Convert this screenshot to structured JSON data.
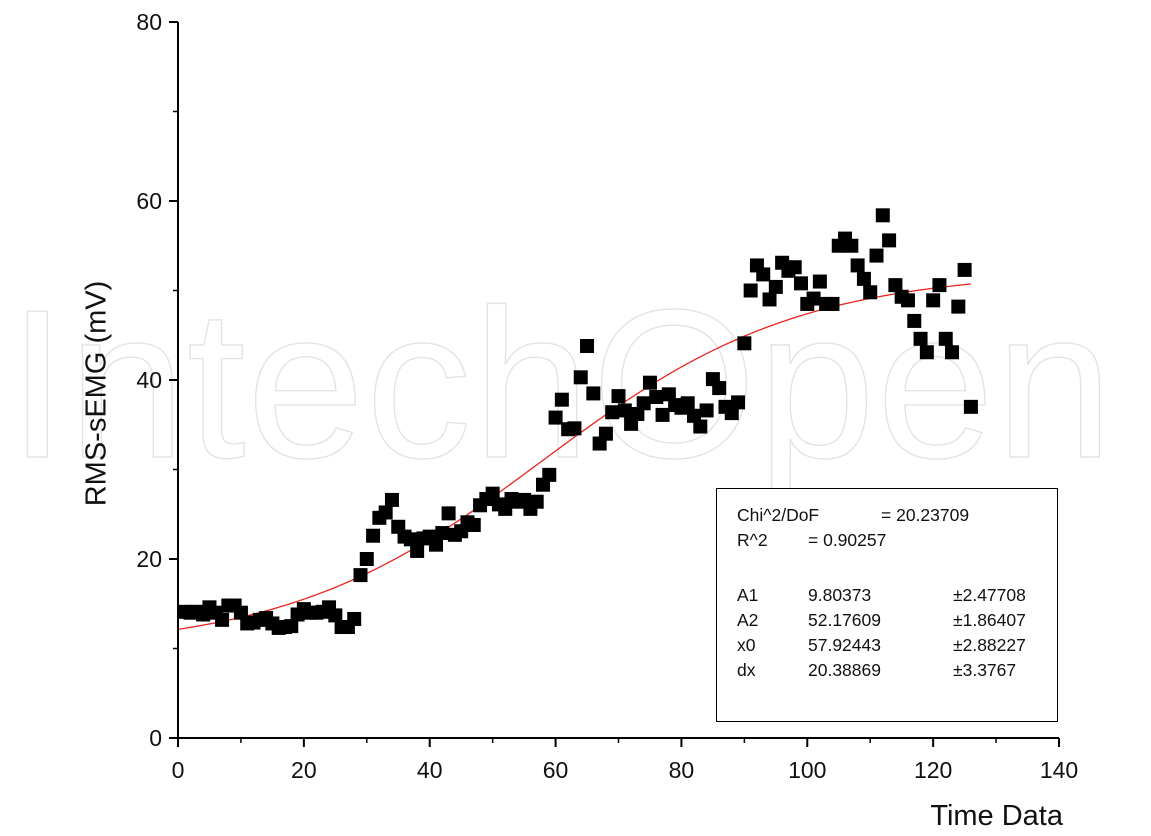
{
  "watermark": "IntechOpen",
  "chart_data": {
    "type": "scatter",
    "title": "",
    "xlabel": "Time Data",
    "ylabel": "RMS-sEMG (mV)",
    "xlim": [
      0,
      140
    ],
    "ylim": [
      0,
      80
    ],
    "xticks": [
      0,
      20,
      40,
      60,
      80,
      100,
      120,
      140
    ],
    "yticks": [
      0,
      20,
      40,
      60,
      80
    ],
    "grid": false,
    "series": [
      {
        "marker": "square",
        "color": "#000000",
        "points": [
          [
            1,
            14.1
          ],
          [
            2,
            14.0
          ],
          [
            3,
            14.1
          ],
          [
            4,
            13.8
          ],
          [
            5,
            14.6
          ],
          [
            6,
            14.0
          ],
          [
            7,
            13.2
          ],
          [
            8,
            14.8
          ],
          [
            9,
            14.8
          ],
          [
            10,
            14.0
          ],
          [
            11,
            12.8
          ],
          [
            12,
            12.9
          ],
          [
            13,
            13.2
          ],
          [
            14,
            13.4
          ],
          [
            15,
            12.8
          ],
          [
            16,
            12.3
          ],
          [
            17,
            12.4
          ],
          [
            18,
            12.5
          ],
          [
            19,
            13.8
          ],
          [
            20,
            14.4
          ],
          [
            21,
            14.0
          ],
          [
            22,
            14.0
          ],
          [
            23,
            14.1
          ],
          [
            24,
            14.6
          ],
          [
            25,
            13.7
          ],
          [
            26,
            12.4
          ],
          [
            27,
            12.4
          ],
          [
            28,
            13.3
          ],
          [
            29,
            18.2
          ],
          [
            30,
            20.0
          ],
          [
            31,
            22.6
          ],
          [
            32,
            24.6
          ],
          [
            33,
            25.2
          ],
          [
            34,
            26.6
          ],
          [
            35,
            23.6
          ],
          [
            36,
            22.5
          ],
          [
            37,
            22.2
          ],
          [
            38,
            20.9
          ],
          [
            39,
            22.3
          ],
          [
            40,
            22.5
          ],
          [
            41,
            21.6
          ],
          [
            42,
            22.9
          ],
          [
            43,
            25.1
          ],
          [
            44,
            22.7
          ],
          [
            45,
            23.1
          ],
          [
            46,
            24.1
          ],
          [
            47,
            23.8
          ],
          [
            48,
            26.0
          ],
          [
            49,
            26.7
          ],
          [
            50,
            27.3
          ],
          [
            51,
            26.1
          ],
          [
            52,
            25.6
          ],
          [
            53,
            26.7
          ],
          [
            54,
            26.4
          ],
          [
            55,
            26.6
          ],
          [
            56,
            25.6
          ],
          [
            57,
            26.4
          ],
          [
            58,
            28.3
          ],
          [
            59,
            29.4
          ],
          [
            60,
            35.8
          ],
          [
            61,
            37.8
          ],
          [
            62,
            34.5
          ],
          [
            63,
            34.6
          ],
          [
            64,
            40.3
          ],
          [
            65,
            43.8
          ],
          [
            66,
            38.5
          ],
          [
            67,
            32.9
          ],
          [
            68,
            34.0
          ],
          [
            69,
            36.4
          ],
          [
            70,
            38.2
          ],
          [
            71,
            36.6
          ],
          [
            72,
            35.1
          ],
          [
            73,
            36.2
          ],
          [
            74,
            37.4
          ],
          [
            75,
            39.7
          ],
          [
            76,
            38.1
          ],
          [
            77,
            36.1
          ],
          [
            78,
            38.4
          ],
          [
            79,
            37.2
          ],
          [
            80,
            36.9
          ],
          [
            81,
            37.4
          ],
          [
            82,
            36.0
          ],
          [
            83,
            34.8
          ],
          [
            84,
            36.6
          ],
          [
            85,
            40.1
          ],
          [
            86,
            39.1
          ],
          [
            87,
            37.0
          ],
          [
            88,
            36.3
          ],
          [
            89,
            37.5
          ],
          [
            90,
            44.1
          ],
          [
            91,
            50.0
          ],
          [
            92,
            52.8
          ],
          [
            93,
            51.8
          ],
          [
            94,
            49.0
          ],
          [
            95,
            50.4
          ],
          [
            96,
            53.1
          ],
          [
            97,
            52.2
          ],
          [
            98,
            52.6
          ],
          [
            99,
            50.8
          ],
          [
            100,
            48.5
          ],
          [
            101,
            49.1
          ],
          [
            102,
            51.0
          ],
          [
            103,
            48.5
          ],
          [
            104,
            48.5
          ],
          [
            105,
            55.0
          ],
          [
            106,
            55.8
          ],
          [
            107,
            55.0
          ],
          [
            108,
            52.8
          ],
          [
            109,
            51.3
          ],
          [
            110,
            49.8
          ],
          [
            111,
            53.9
          ],
          [
            112,
            58.4
          ],
          [
            113,
            55.6
          ],
          [
            114,
            50.6
          ],
          [
            115,
            49.3
          ],
          [
            116,
            48.9
          ],
          [
            117,
            46.6
          ],
          [
            118,
            44.6
          ],
          [
            119,
            43.1
          ],
          [
            120,
            48.9
          ],
          [
            121,
            50.6
          ],
          [
            122,
            44.6
          ],
          [
            123,
            43.1
          ],
          [
            124,
            48.2
          ],
          [
            125,
            52.3
          ],
          [
            126,
            37.0
          ]
        ]
      }
    ],
    "fit": {
      "model": "boltzmann",
      "color": "#e8251f",
      "x_range": [
        0,
        126
      ],
      "A1": 9.80373,
      "A2": 52.17609,
      "x0": 57.92443,
      "dx": 20.38869
    },
    "stats": {
      "chi2_label": "Chi^2/DoF",
      "chi2_value": "= 20.23709",
      "r2_label": "R^2",
      "r2_value": "=  0.90257",
      "params": [
        {
          "name": "A1",
          "value": "9.80373",
          "error": "±2.47708"
        },
        {
          "name": "A2",
          "value": "52.17609",
          "error": "±1.86407"
        },
        {
          "name": "x0",
          "value": "57.92443",
          "error": "±2.88227"
        },
        {
          "name": "dx",
          "value": "20.38869",
          "error": "±3.3767"
        }
      ]
    }
  }
}
